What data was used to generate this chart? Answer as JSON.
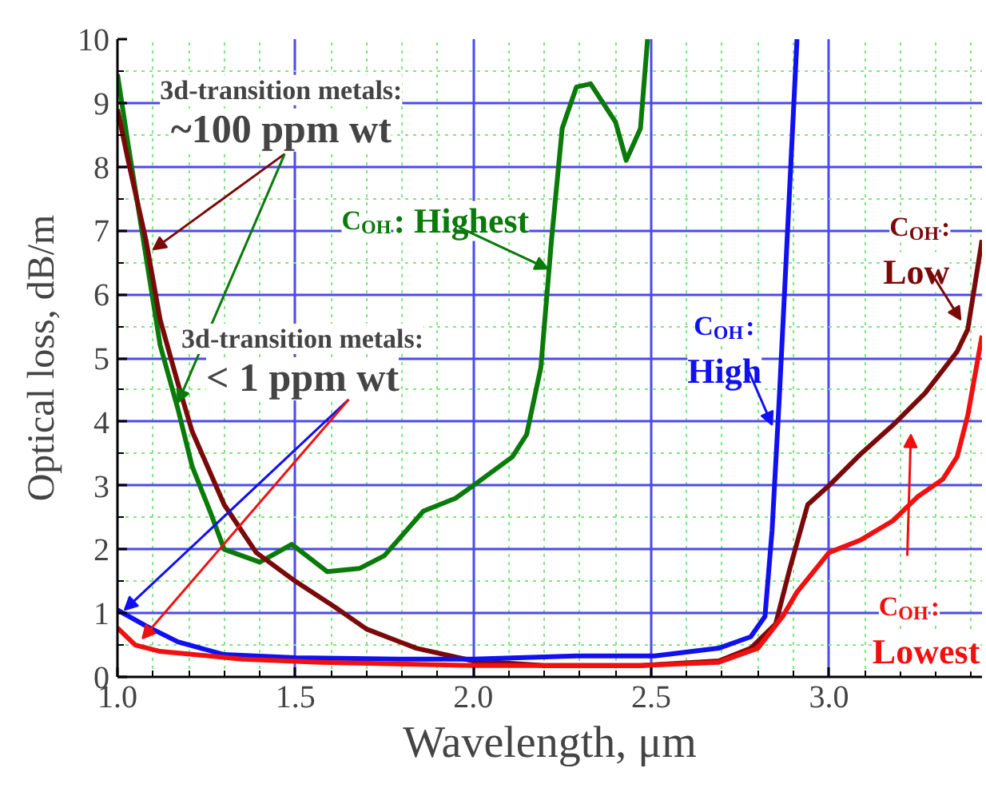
{
  "chart_data": {
    "type": "line",
    "xlabel": "Wavelength, μm",
    "ylabel": "Optical loss, dB/m",
    "xlim": [
      1.0,
      3.43
    ],
    "ylim": [
      0,
      10
    ],
    "xticks": [
      {
        "value": 1.0,
        "label": "1.0"
      },
      {
        "value": 1.1,
        "label": null
      },
      {
        "value": 1.2,
        "label": null
      },
      {
        "value": 1.3,
        "label": null
      },
      {
        "value": 1.4,
        "label": null
      },
      {
        "value": 1.5,
        "label": "1.5"
      },
      {
        "value": 1.6,
        "label": null
      },
      {
        "value": 1.7,
        "label": null
      },
      {
        "value": 1.8,
        "label": null
      },
      {
        "value": 1.9,
        "label": null
      },
      {
        "value": 2.0,
        "label": "2.0"
      },
      {
        "value": 2.1,
        "label": null
      },
      {
        "value": 2.2,
        "label": null
      },
      {
        "value": 2.3,
        "label": null
      },
      {
        "value": 2.4,
        "label": null
      },
      {
        "value": 2.5,
        "label": "2.5"
      },
      {
        "value": 2.6,
        "label": null
      },
      {
        "value": 2.7,
        "label": null
      },
      {
        "value": 2.8,
        "label": null
      },
      {
        "value": 2.9,
        "label": null
      },
      {
        "value": 3.0,
        "label": "3.0"
      },
      {
        "value": 3.1,
        "label": null
      },
      {
        "value": 3.2,
        "label": null
      },
      {
        "value": 3.3,
        "label": null
      },
      {
        "value": 3.4,
        "label": null
      }
    ],
    "yticks": [
      0,
      {
        "value": 0.5,
        "label": null
      },
      1,
      {
        "value": 1.5,
        "label": null
      },
      2,
      {
        "value": 2.5,
        "label": null
      },
      3,
      {
        "value": 3.5,
        "label": null
      },
      4,
      {
        "value": 4.5,
        "label": null
      },
      5,
      {
        "value": 5.5,
        "label": null
      },
      6,
      {
        "value": 6.5,
        "label": null
      },
      7,
      {
        "value": 7.5,
        "label": null
      },
      8,
      {
        "value": 8.5,
        "label": null
      },
      9,
      {
        "value": 9.5,
        "label": null
      },
      10
    ],
    "grid": true,
    "line_style": "solid",
    "annotations": [
      {
        "text": "3d-transition metals: ~100 ppm wt",
        "x": 1.1,
        "y": 6.7
      },
      {
        "text": "3d-transition metals: < 1 ppm wt",
        "x": 1.02,
        "y": 1.05
      }
    ],
    "series": [
      {
        "name": "C$_{OH}$: Highest",
        "color": "#0a7a0a",
        "x": [
          1.0,
          1.03,
          1.08,
          1.12,
          1.17,
          1.21,
          1.26,
          1.3,
          1.4,
          1.49,
          1.52,
          1.59,
          1.68,
          1.75,
          1.86,
          1.95,
          2.0,
          2.11,
          2.15,
          2.19,
          2.22,
          2.25,
          2.29,
          2.33,
          2.4,
          2.43,
          2.47,
          2.49
        ],
        "values": [
          9.45,
          8.35,
          6.6,
          5.2,
          4.2,
          3.3,
          2.6,
          2.0,
          1.8,
          2.08,
          1.95,
          1.65,
          1.7,
          1.9,
          2.6,
          2.8,
          3.0,
          3.45,
          3.8,
          4.85,
          6.85,
          8.6,
          9.25,
          9.3,
          8.7,
          8.1,
          8.6,
          10
        ]
      },
      {
        "name": "C$_{OH}$: Low",
        "color": "#7a0a0a",
        "x": [
          1.0,
          1.03,
          1.08,
          1.12,
          1.17,
          1.21,
          1.3,
          1.39,
          1.5,
          1.61,
          1.7,
          1.84,
          2.0,
          2.2,
          2.47,
          2.69,
          2.78,
          2.85,
          2.89,
          2.94,
          3.0,
          3.09,
          3.18,
          3.27,
          3.36,
          3.39,
          3.43
        ],
        "values": [
          8.9,
          8.1,
          6.85,
          5.6,
          4.6,
          3.85,
          2.7,
          1.95,
          1.5,
          1.1,
          0.75,
          0.45,
          0.25,
          0.18,
          0.18,
          0.25,
          0.45,
          0.83,
          1.7,
          2.7,
          3.0,
          3.5,
          3.95,
          4.45,
          5.1,
          5.45,
          6.85
        ]
      },
      {
        "name": "C$_{OH}$: High",
        "color": "#1010f0",
        "x": [
          1.0,
          1.08,
          1.17,
          1.3,
          1.5,
          1.79,
          2.0,
          2.29,
          2.51,
          2.69,
          2.78,
          2.82,
          2.84,
          2.86,
          2.88,
          2.91
        ],
        "values": [
          1.05,
          0.8,
          0.55,
          0.35,
          0.3,
          0.28,
          0.28,
          0.33,
          0.33,
          0.45,
          0.63,
          0.95,
          2.3,
          4.35,
          6.6,
          10
        ]
      },
      {
        "name": "C$_{OH}$: Lowest",
        "color": "#f01010",
        "x": [
          1.0,
          1.05,
          1.12,
          1.35,
          1.57,
          2.0,
          2.47,
          2.69,
          2.8,
          2.87,
          2.91,
          3.0,
          3.09,
          3.18,
          3.25,
          3.32,
          3.36,
          3.39,
          3.43
        ],
        "values": [
          0.77,
          0.5,
          0.4,
          0.28,
          0.23,
          0.18,
          0.18,
          0.23,
          0.45,
          0.95,
          1.33,
          1.95,
          2.15,
          2.45,
          2.83,
          3.1,
          3.45,
          4.1,
          5.35
        ]
      }
    ]
  }
}
